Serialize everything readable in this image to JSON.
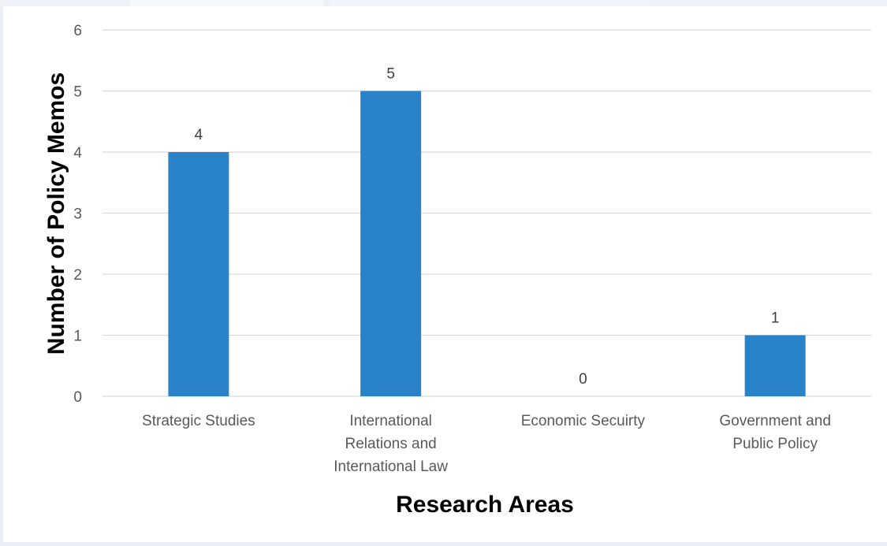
{
  "chart_data": {
    "type": "bar",
    "title": "",
    "xlabel": "Research Areas",
    "ylabel": "Number of Policy Memos",
    "categories": [
      [
        "Strategic Studies"
      ],
      [
        "International",
        "Relations and",
        "International Law"
      ],
      [
        "Economic Secuirty"
      ],
      [
        "Government and",
        "Public Policy"
      ]
    ],
    "values": [
      4,
      5,
      0,
      1
    ],
    "ylim": [
      0,
      6
    ],
    "yticks": [
      "0",
      "1",
      "2",
      "3",
      "4",
      "5",
      "6"
    ],
    "data_labels": [
      "4",
      "5",
      "0",
      "1"
    ],
    "grid": true,
    "legend": "none",
    "bar_color": "#2a83c9",
    "grid_color": "#d9d9d9"
  }
}
